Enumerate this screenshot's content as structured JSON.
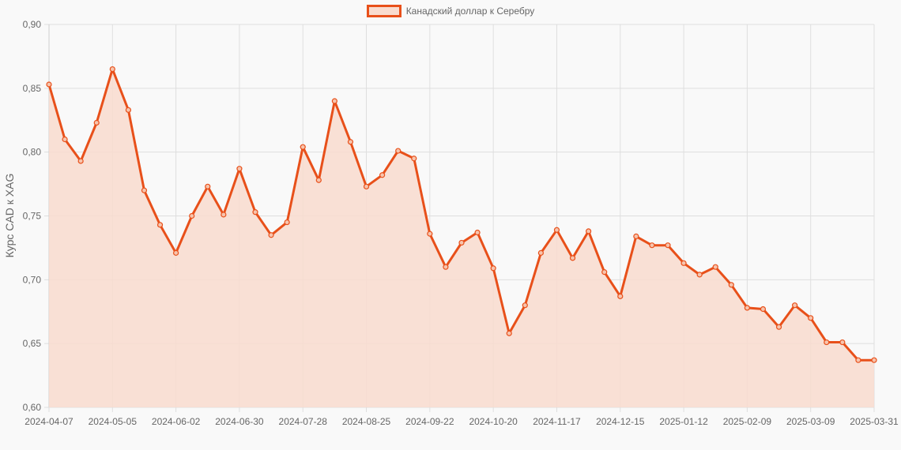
{
  "chart_data": {
    "type": "line",
    "title": "",
    "legend": [
      "Канадский доллар к Серебру"
    ],
    "legend_position": "top",
    "xlabel": "",
    "ylabel": "Курс CAD к XAG",
    "ylim": [
      0.6,
      0.9
    ],
    "y_ticks": [
      "0,60",
      "0,65",
      "0,70",
      "0,75",
      "0,80",
      "0,85",
      "0,90"
    ],
    "x_tick_labels": [
      "2024-04-07",
      "2024-05-05",
      "2024-06-02",
      "2024-06-30",
      "2024-07-28",
      "2024-08-25",
      "2024-09-22",
      "2024-10-20",
      "2024-11-17",
      "2024-12-15",
      "2025-01-12",
      "2025-02-09",
      "2025-03-09",
      "2025-03-31"
    ],
    "grid": true,
    "fill": true,
    "x": [
      "2024-04-07",
      "2024-04-14",
      "2024-04-21",
      "2024-04-28",
      "2024-05-05",
      "2024-05-12",
      "2024-05-19",
      "2024-05-26",
      "2024-06-02",
      "2024-06-09",
      "2024-06-16",
      "2024-06-23",
      "2024-06-30",
      "2024-07-07",
      "2024-07-14",
      "2024-07-21",
      "2024-07-28",
      "2024-08-04",
      "2024-08-11",
      "2024-08-18",
      "2024-08-25",
      "2024-09-01",
      "2024-09-08",
      "2024-09-15",
      "2024-09-22",
      "2024-09-29",
      "2024-10-06",
      "2024-10-13",
      "2024-10-20",
      "2024-10-27",
      "2024-11-03",
      "2024-11-10",
      "2024-11-17",
      "2024-11-24",
      "2024-12-01",
      "2024-12-08",
      "2024-12-15",
      "2024-12-22",
      "2024-12-29",
      "2025-01-05",
      "2025-01-12",
      "2025-01-19",
      "2025-01-26",
      "2025-02-02",
      "2025-02-09",
      "2025-02-16",
      "2025-02-23",
      "2025-03-02",
      "2025-03-09",
      "2025-03-16",
      "2025-03-23",
      "2025-03-30",
      "2025-03-31"
    ],
    "series": [
      {
        "name": "Канадский доллар к Серебру",
        "color": "#e8501a",
        "fill_color": "#f9dccf",
        "values": [
          0.853,
          0.81,
          0.793,
          0.823,
          0.865,
          0.833,
          0.77,
          0.743,
          0.721,
          0.75,
          0.773,
          0.751,
          0.787,
          0.753,
          0.735,
          0.745,
          0.804,
          0.778,
          0.84,
          0.808,
          0.773,
          0.782,
          0.801,
          0.795,
          0.736,
          0.71,
          0.729,
          0.737,
          0.709,
          0.658,
          0.68,
          0.721,
          0.739,
          0.717,
          0.738,
          0.706,
          0.687,
          0.734,
          0.727,
          0.727,
          0.713,
          0.704,
          0.71,
          0.696,
          0.678,
          0.677,
          0.663,
          0.68,
          0.67,
          0.651,
          0.651,
          0.637,
          0.637
        ]
      }
    ]
  }
}
